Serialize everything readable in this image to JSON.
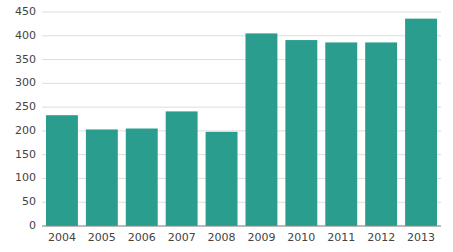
{
  "chart_data": {
    "type": "bar",
    "categories": [
      "2004",
      "2005",
      "2006",
      "2007",
      "2008",
      "2009",
      "2010",
      "2011",
      "2012",
      "2013"
    ],
    "values": [
      233,
      203,
      205,
      241,
      198,
      405,
      391,
      386,
      386,
      436
    ],
    "color": "#2a9d8f",
    "ylim": [
      0,
      450
    ],
    "yticks": [
      0,
      50,
      100,
      150,
      200,
      250,
      300,
      350,
      400,
      450
    ],
    "grid": true
  }
}
